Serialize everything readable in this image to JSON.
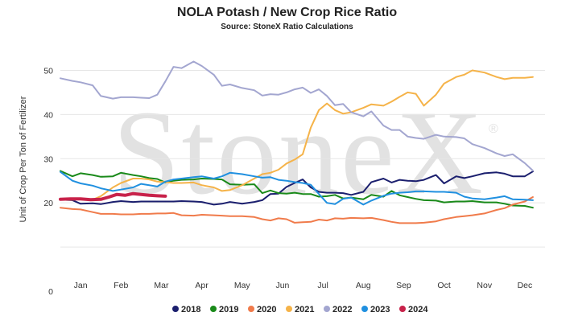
{
  "chart_data": {
    "type": "line",
    "title": "NOLA Potash / New Crop Rice Ratio",
    "subtitle": "Source: StoneX Ratio Calculations",
    "ylabel": "Unit of Crop Per Ton of Fertilizer",
    "xlabel": "",
    "watermark": "StoneX",
    "watermark_mark": "®",
    "ylim": [
      0,
      55
    ],
    "yticks": [
      0,
      10,
      20,
      30,
      40,
      50
    ],
    "ytick_labels": [
      "0",
      "",
      "20",
      "30",
      "40",
      "50"
    ],
    "xlim": [
      0,
      12
    ],
    "months": [
      "Jan",
      "Feb",
      "Mar",
      "Apr",
      "May",
      "Jun",
      "Jul",
      "Aug",
      "Sep",
      "Oct",
      "Nov",
      "Dec"
    ],
    "grid": true,
    "legend_position": "bottom",
    "series": [
      {
        "name": "2018",
        "color": "#1b1f6e",
        "width": 2,
        "x": [
          0.0,
          0.3,
          0.5,
          0.8,
          1.0,
          1.3,
          1.5,
          1.8,
          2.0,
          2.2,
          2.4,
          2.6,
          2.8,
          3.0,
          3.3,
          3.5,
          3.8,
          4.0,
          4.2,
          4.5,
          4.8,
          5.0,
          5.2,
          5.4,
          5.6,
          5.8,
          6.0,
          6.2,
          6.4,
          6.6,
          6.8,
          7.0,
          7.2,
          7.5,
          7.7,
          8.0,
          8.2,
          8.4,
          8.6,
          8.8,
          9.0,
          9.3,
          9.5,
          9.8,
          10.0,
          10.2,
          10.5,
          10.8,
          11.0,
          11.2,
          11.5,
          11.7
        ],
        "y": [
          20.7,
          20.6,
          19.8,
          19.9,
          19.7,
          20.2,
          20.4,
          20.2,
          20.3,
          20.3,
          20.3,
          20.3,
          20.3,
          20.4,
          20.3,
          20.2,
          19.6,
          19.8,
          20.2,
          19.8,
          20.2,
          20.6,
          22.0,
          22.1,
          23.6,
          24.5,
          25.3,
          23.5,
          22.5,
          22.3,
          22.3,
          22.2,
          21.8,
          22.5,
          24.7,
          25.5,
          24.6,
          25.2,
          25.0,
          24.9,
          25.2,
          26.3,
          24.4,
          26.0,
          25.6,
          26.0,
          26.7,
          26.9,
          26.6,
          26.0,
          26.0,
          27.1
        ]
      },
      {
        "name": "2019",
        "color": "#1a8a1a",
        "width": 2,
        "x": [
          0.0,
          0.3,
          0.5,
          0.8,
          1.0,
          1.3,
          1.5,
          1.8,
          2.0,
          2.2,
          2.4,
          2.6,
          2.8,
          3.0,
          3.3,
          3.5,
          3.8,
          4.0,
          4.2,
          4.5,
          4.8,
          5.0,
          5.2,
          5.4,
          5.6,
          5.8,
          6.0,
          6.2,
          6.4,
          6.6,
          6.8,
          7.0,
          7.2,
          7.5,
          7.7,
          8.0,
          8.2,
          8.4,
          8.6,
          8.8,
          9.0,
          9.3,
          9.5,
          9.8,
          10.0,
          10.2,
          10.5,
          10.8,
          11.0,
          11.2,
          11.5,
          11.7
        ],
        "y": [
          27.2,
          26.0,
          26.7,
          26.3,
          25.9,
          26.0,
          26.8,
          26.3,
          26.0,
          25.6,
          25.4,
          24.6,
          25.0,
          25.2,
          25.3,
          25.5,
          25.4,
          25.3,
          24.2,
          24.1,
          24.2,
          22.2,
          22.8,
          22.2,
          22.1,
          22.3,
          22.0,
          22.0,
          21.4,
          21.5,
          21.8,
          21.0,
          21.2,
          20.8,
          21.8,
          21.4,
          22.7,
          21.7,
          21.3,
          20.9,
          20.6,
          20.5,
          20.1,
          20.3,
          20.3,
          20.4,
          20.1,
          20.1,
          19.8,
          19.4,
          19.3,
          18.9
        ]
      },
      {
        "name": "2020",
        "color": "#f07b4b",
        "width": 2,
        "x": [
          0.0,
          0.3,
          0.5,
          0.8,
          1.0,
          1.3,
          1.5,
          1.8,
          2.0,
          2.2,
          2.4,
          2.6,
          2.8,
          3.0,
          3.3,
          3.5,
          3.8,
          4.0,
          4.2,
          4.5,
          4.8,
          5.0,
          5.2,
          5.4,
          5.6,
          5.8,
          6.0,
          6.2,
          6.4,
          6.6,
          6.8,
          7.0,
          7.2,
          7.5,
          7.7,
          8.0,
          8.2,
          8.4,
          8.6,
          8.8,
          9.0,
          9.3,
          9.5,
          9.8,
          10.0,
          10.2,
          10.5,
          10.8,
          11.0,
          11.2,
          11.5,
          11.7
        ],
        "y": [
          18.9,
          18.6,
          18.5,
          17.9,
          17.5,
          17.5,
          17.4,
          17.4,
          17.5,
          17.5,
          17.6,
          17.6,
          17.7,
          17.2,
          17.1,
          17.3,
          17.2,
          17.1,
          17.0,
          17.0,
          16.8,
          16.3,
          16.0,
          16.5,
          16.3,
          15.5,
          15.6,
          15.7,
          16.2,
          16.0,
          16.5,
          16.4,
          16.6,
          16.5,
          16.6,
          16.1,
          15.7,
          15.4,
          15.4,
          15.4,
          15.5,
          15.8,
          16.3,
          16.8,
          17.0,
          17.2,
          17.6,
          18.4,
          18.8,
          19.6,
          20.3,
          21.3
        ]
      },
      {
        "name": "2021",
        "color": "#f5b349",
        "width": 2,
        "x": [
          0.0,
          0.3,
          0.5,
          0.8,
          1.0,
          1.3,
          1.5,
          1.8,
          2.0,
          2.2,
          2.4,
          2.6,
          2.8,
          3.0,
          3.3,
          3.5,
          3.8,
          4.0,
          4.2,
          4.5,
          4.8,
          5.0,
          5.2,
          5.4,
          5.6,
          5.8,
          6.0,
          6.2,
          6.4,
          6.6,
          6.8,
          7.0,
          7.2,
          7.5,
          7.7,
          8.0,
          8.2,
          8.4,
          8.6,
          8.8,
          9.0,
          9.3,
          9.5,
          9.8,
          10.0,
          10.2,
          10.5,
          10.8,
          11.0,
          11.2,
          11.5,
          11.7
        ],
        "y": [
          20.7,
          20.7,
          20.8,
          20.7,
          21.5,
          23.5,
          24.5,
          25.5,
          25.5,
          25.3,
          24.8,
          24.7,
          24.5,
          24.5,
          24.6,
          24.0,
          23.5,
          22.7,
          22.9,
          24.0,
          25.5,
          26.5,
          26.8,
          27.5,
          28.9,
          29.8,
          31.0,
          37.0,
          41.0,
          42.5,
          41.0,
          40.2,
          40.5,
          41.5,
          42.3,
          42.0,
          42.9,
          44.0,
          45.0,
          44.7,
          42.0,
          44.5,
          47.0,
          48.5,
          49.0,
          50.0,
          49.5,
          48.5,
          48.0,
          48.3,
          48.3,
          48.5
        ]
      },
      {
        "name": "2022",
        "color": "#a3a6d0",
        "width": 2,
        "x": [
          0.0,
          0.3,
          0.5,
          0.8,
          1.0,
          1.3,
          1.5,
          1.8,
          2.0,
          2.2,
          2.4,
          2.6,
          2.8,
          3.0,
          3.3,
          3.5,
          3.8,
          4.0,
          4.2,
          4.5,
          4.8,
          5.0,
          5.2,
          5.4,
          5.6,
          5.8,
          6.0,
          6.2,
          6.4,
          6.6,
          6.8,
          7.0,
          7.2,
          7.5,
          7.7,
          8.0,
          8.2,
          8.4,
          8.6,
          8.8,
          9.0,
          9.3,
          9.5,
          9.8,
          10.0,
          10.2,
          10.5,
          10.8,
          11.0,
          11.2,
          11.5,
          11.7
        ],
        "y": [
          48.2,
          47.6,
          47.3,
          46.6,
          44.2,
          43.6,
          43.9,
          43.9,
          43.8,
          43.7,
          44.5,
          47.5,
          50.8,
          50.5,
          52.0,
          51.0,
          49.0,
          46.5,
          46.8,
          46.0,
          45.5,
          44.3,
          44.6,
          44.5,
          45.0,
          45.7,
          46.1,
          44.9,
          45.7,
          44.2,
          42.1,
          42.4,
          40.5,
          39.6,
          40.7,
          37.5,
          36.5,
          36.5,
          35.0,
          34.7,
          34.5,
          35.4,
          35.0,
          34.9,
          34.6,
          33.3,
          32.4,
          31.2,
          30.6,
          31.0,
          29.0,
          27.3
        ]
      },
      {
        "name": "2023",
        "color": "#2090e0",
        "width": 2,
        "x": [
          0.0,
          0.3,
          0.5,
          0.8,
          1.0,
          1.3,
          1.5,
          1.8,
          2.0,
          2.2,
          2.4,
          2.6,
          2.8,
          3.0,
          3.3,
          3.5,
          3.8,
          4.0,
          4.2,
          4.5,
          4.8,
          5.0,
          5.2,
          5.4,
          5.6,
          5.8,
          6.0,
          6.2,
          6.4,
          6.6,
          6.8,
          7.0,
          7.2,
          7.5,
          7.7,
          8.0,
          8.2,
          8.4,
          8.6,
          8.8,
          9.0,
          9.3,
          9.5,
          9.8,
          10.0,
          10.2,
          10.5,
          10.8,
          11.0,
          11.2,
          11.5,
          11.7
        ],
        "y": [
          27.0,
          25.0,
          24.4,
          23.9,
          23.3,
          22.7,
          23.0,
          23.5,
          24.3,
          24.0,
          23.7,
          24.8,
          25.3,
          25.5,
          25.8,
          26.0,
          25.5,
          26.0,
          26.8,
          26.5,
          26.0,
          25.7,
          25.8,
          25.2,
          25.0,
          24.7,
          24.5,
          24.1,
          22.0,
          20.0,
          19.7,
          20.9,
          21.2,
          19.6,
          20.5,
          21.6,
          22.1,
          22.3,
          22.4,
          22.6,
          22.6,
          22.5,
          22.5,
          22.3,
          21.4,
          21.0,
          20.8,
          21.2,
          21.5,
          20.8,
          20.7,
          20.6
        ]
      },
      {
        "name": "2024",
        "color": "#c8224a",
        "width": 4,
        "x": [
          0.0,
          0.25,
          0.5,
          0.75,
          1.0,
          1.2,
          1.4,
          1.6,
          1.8,
          2.0,
          2.2,
          2.4,
          2.6
        ],
        "y": [
          20.8,
          20.9,
          20.9,
          20.7,
          20.8,
          21.3,
          21.9,
          21.7,
          22.1,
          21.9,
          21.7,
          21.6,
          21.5
        ]
      }
    ]
  }
}
